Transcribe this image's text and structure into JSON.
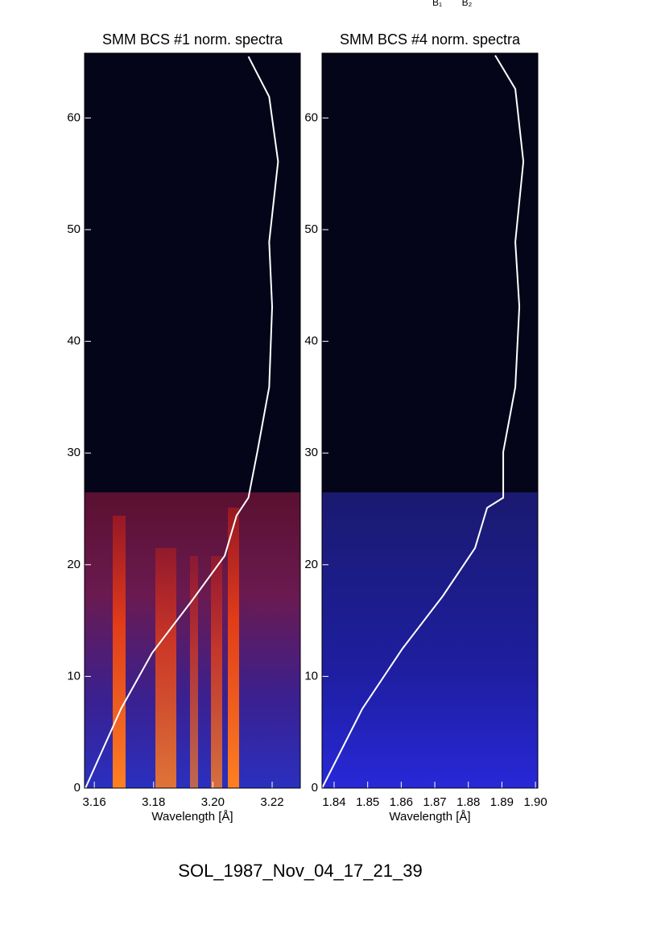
{
  "header_labels": [
    "B₁",
    "B₂"
  ],
  "caption": "SOL_1987_Nov_04_17_21_39",
  "chart_data": [
    {
      "type": "heatmap-line",
      "title": "SMM BCS #1 norm. spectra",
      "xlabel": "Wavelength [Å]",
      "xlim": [
        3.1567,
        3.2295
      ],
      "xticks": [
        3.16,
        3.18,
        {
          "value": 3.2,
          "label": "3.20"
        },
        3.22
      ],
      "ylim": [
        0,
        65.8
      ],
      "yticks": [
        0,
        10,
        20,
        30,
        40,
        50,
        60
      ],
      "curve": {
        "color": "#ffffff",
        "x": [
          3.157,
          3.169,
          3.1795,
          3.193,
          3.204,
          3.208,
          3.212,
          3.215,
          3.219,
          3.22,
          3.219,
          3.222,
          3.219,
          3.212
        ],
        "y": [
          0,
          7.1,
          12.1,
          16.8,
          20.8,
          24.4,
          26,
          30.1,
          35.9,
          43.1,
          48.9,
          56.1,
          61.9,
          65.5
        ]
      }
    },
    {
      "type": "heatmap-line",
      "title": "SMM BCS #4 norm. spectra",
      "xlabel": "Wavelength [Å]",
      "xlim": [
        1.8364,
        1.9007
      ],
      "xticks": [
        1.84,
        1.85,
        1.86,
        1.87,
        1.88,
        1.89,
        {
          "value": 1.9,
          "label": "1.90"
        }
      ],
      "ylim": [
        0,
        65.8
      ],
      "yticks": [
        0,
        10,
        20,
        30,
        40,
        50,
        60
      ],
      "curve": {
        "color": "#ffffff",
        "x": [
          1.8364,
          1.8484,
          1.8604,
          1.8724,
          1.882,
          1.8856,
          1.8904,
          1.8904,
          1.894,
          1.8952,
          1.894,
          1.8964,
          1.894,
          1.888
        ],
        "y": [
          0,
          7.1,
          12.5,
          17.2,
          21.5,
          25.1,
          26,
          30.1,
          35.9,
          43.1,
          48.9,
          56.1,
          62.6,
          65.6
        ]
      }
    }
  ]
}
